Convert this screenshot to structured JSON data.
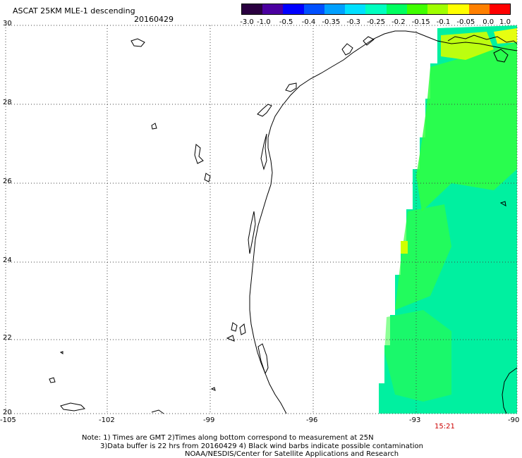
{
  "header": {
    "title": "ASCAT 25KM MLE-1 descending",
    "date": "20160429"
  },
  "colorbar": {
    "labels": [
      "-3.0",
      "-1.0",
      "-0.5",
      "-0.4",
      "-0.35",
      "-0.3",
      "-0.25",
      "-0.2",
      "-0.15",
      "-0.1",
      "-0.05",
      "0.0",
      "1.0"
    ],
    "colors": [
      "#2a0040",
      "#4b00a0",
      "#0000ff",
      "#0050ff",
      "#00a0ff",
      "#00e0ff",
      "#00ffc0",
      "#00ff60",
      "#40ff00",
      "#a0ff00",
      "#ffff00",
      "#ff8000",
      "#ff0000"
    ]
  },
  "axes": {
    "lat_labels": [
      "30",
      "28",
      "26",
      "24",
      "22",
      "20"
    ],
    "lon_labels": [
      "-105",
      "-102",
      "-99",
      "-96",
      "-93",
      "-90"
    ]
  },
  "time_label": "15:21",
  "notes": {
    "line1": "Note: 1) Times are GMT 2)Times along bottom correspond to measurement at 25N",
    "line2": "3)Data buffer is 22 hrs from 20160429 4) Black wind barbs indicate possible contamination",
    "line3": "NOAA/NESDIS/Center for Satellite Applications and Research"
  },
  "colors": {
    "swath_main": "#00f0a0",
    "swath_green": "#30ff30",
    "swath_yellow": "#d0ff00",
    "grid": "#444444"
  }
}
